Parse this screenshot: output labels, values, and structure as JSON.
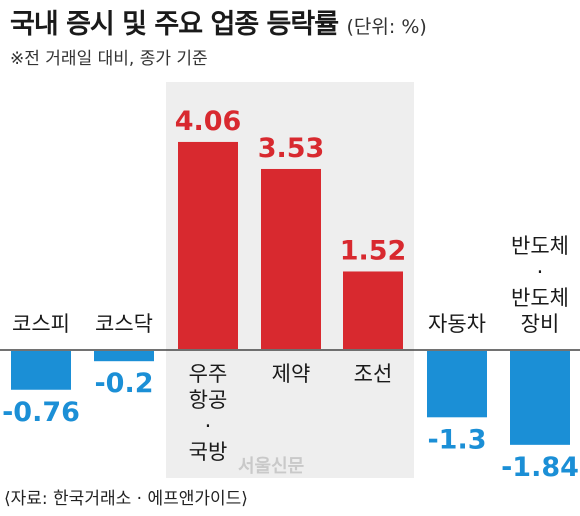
{
  "header": {
    "title": "국내 증시 및 주요 업종 등락률",
    "unit": "(단위: %)",
    "note": "※전 거래일 대비, 종가 기준"
  },
  "footer": {
    "source": "⟨자료: 한국거래소 · 에프앤가이드⟩",
    "watermark": "서울신문"
  },
  "colors": {
    "positive": "#d8292f",
    "negative": "#1b8fd6",
    "highlight": "#eeeeee"
  },
  "chart_data": {
    "type": "bar",
    "categories": [
      "코스피",
      "코스닥",
      "우주·항공·국방",
      "제약",
      "조선",
      "자동차",
      "반도체·반도체 장비"
    ],
    "category_lines": [
      [
        "코스피"
      ],
      [
        "코스닥"
      ],
      [
        "우주",
        "항공",
        "·",
        "국방"
      ],
      [
        "제약"
      ],
      [
        "조선"
      ],
      [
        "자동차"
      ],
      [
        "반도체",
        "·",
        "반도체",
        "장비"
      ]
    ],
    "values": [
      -0.76,
      -0.2,
      4.06,
      3.53,
      1.52,
      -1.3,
      -1.84
    ],
    "value_labels": [
      "-0.76",
      "-0.2",
      "4.06",
      "3.53",
      "1.52",
      "-1.3",
      "-1.84"
    ],
    "highlighted_categories": [
      "우주·항공·국방",
      "제약",
      "조선"
    ]
  }
}
